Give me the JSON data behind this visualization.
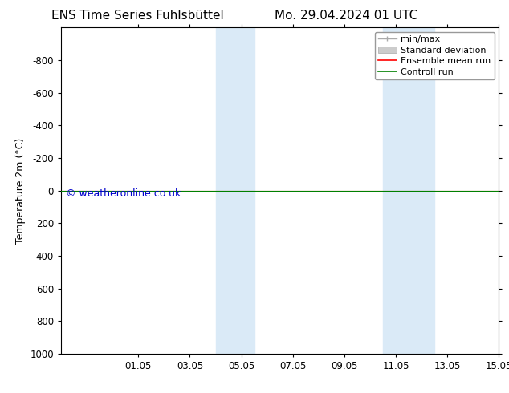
{
  "title_left": "ENS Time Series Fuhlsbüttel",
  "title_right": "Mo. 29.04.2024 01 UTC",
  "ylabel": "Temperature 2m (°C)",
  "watermark": "© weatheronline.co.uk",
  "xlim_start": 29.0,
  "xlim_end": 46.0,
  "ylim_bottom": 1000,
  "ylim_top": -1000,
  "yticks": [
    -800,
    -600,
    -400,
    -200,
    0,
    200,
    400,
    600,
    800,
    1000
  ],
  "xtick_labels": [
    "01.05",
    "03.05",
    "05.05",
    "07.05",
    "09.05",
    "11.05",
    "13.05",
    "15.05"
  ],
  "xtick_positions": [
    32.0,
    34.0,
    36.0,
    38.0,
    40.0,
    42.0,
    44.0,
    46.0
  ],
  "shaded_bands": [
    {
      "x_start": 35.0,
      "x_end": 36.5
    },
    {
      "x_start": 41.5,
      "x_end": 43.5
    }
  ],
  "shade_color": "#daeaf7",
  "control_run_color": "#008000",
  "ensemble_mean_color": "#ff0000",
  "minmax_color": "#aaaaaa",
  "stddev_color": "#cccccc",
  "background_color": "#ffffff",
  "title_fontsize": 11,
  "label_fontsize": 9,
  "tick_fontsize": 8.5,
  "watermark_color": "#0000cc",
  "watermark_fontsize": 9,
  "legend_fontsize": 8
}
